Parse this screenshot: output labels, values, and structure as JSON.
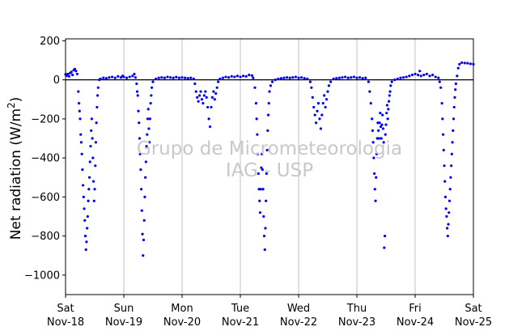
{
  "chart_data": {
    "type": "scatter",
    "ylabel_main": "Net radiation (W/m",
    "ylabel_sup": "2",
    "ylabel_close": ")",
    "ylim": [
      -1100,
      210
    ],
    "yticks": [
      200,
      0,
      -200,
      -400,
      -600,
      -800,
      -1000
    ],
    "ytick_labels": [
      "200",
      "0",
      "−200",
      "−400",
      "−600",
      "−800",
      "−1000"
    ],
    "xlim": [
      0,
      7
    ],
    "xticks": [
      {
        "day": 0,
        "line1": "Sat",
        "line2": "Nov-18"
      },
      {
        "day": 1,
        "line1": "Sun",
        "line2": "Nov-19"
      },
      {
        "day": 2,
        "line1": "Mon",
        "line2": "Nov-20"
      },
      {
        "day": 3,
        "line1": "Tue",
        "line2": "Nov-21"
      },
      {
        "day": 4,
        "line1": "Wed",
        "line2": "Nov-22"
      },
      {
        "day": 5,
        "line1": "Thu",
        "line2": "Nov-23"
      },
      {
        "day": 6,
        "line1": "Fri",
        "line2": "Nov-24"
      },
      {
        "day": 7,
        "line1": "Sat",
        "line2": "Nov-25"
      }
    ],
    "grid": "vertical",
    "zero_line": true,
    "marker_color": "#0000ff",
    "watermark_line1": "Grupo de Micrometeorologia",
    "watermark_line2": "IAG - USP",
    "series": [
      {
        "values": [
          [
            0.0,
            28
          ],
          [
            0.02,
            22
          ],
          [
            0.04,
            30
          ],
          [
            0.06,
            18
          ],
          [
            0.08,
            35
          ],
          [
            0.1,
            40
          ],
          [
            0.12,
            25
          ],
          [
            0.14,
            50
          ],
          [
            0.16,
            55
          ],
          [
            0.18,
            45
          ],
          [
            0.2,
            30
          ],
          [
            0.22,
            -60
          ],
          [
            0.23,
            -120
          ],
          [
            0.24,
            -160
          ],
          [
            0.25,
            -200
          ],
          [
            0.26,
            -280
          ],
          [
            0.27,
            -320
          ],
          [
            0.28,
            -380
          ],
          [
            0.29,
            -460
          ],
          [
            0.3,
            -540
          ],
          [
            0.31,
            -600
          ],
          [
            0.32,
            -660
          ],
          [
            0.33,
            -720
          ],
          [
            0.34,
            -800
          ],
          [
            0.35,
            -870
          ],
          [
            0.36,
            -830
          ],
          [
            0.37,
            -760
          ],
          [
            0.38,
            -700
          ],
          [
            0.39,
            -620
          ],
          [
            0.4,
            -560
          ],
          [
            0.41,
            -500
          ],
          [
            0.42,
            -420
          ],
          [
            0.43,
            -340
          ],
          [
            0.44,
            -260
          ],
          [
            0.45,
            -200
          ],
          [
            0.46,
            -300
          ],
          [
            0.47,
            -400
          ],
          [
            0.48,
            -520
          ],
          [
            0.49,
            -620
          ],
          [
            0.5,
            -560
          ],
          [
            0.51,
            -440
          ],
          [
            0.52,
            -320
          ],
          [
            0.53,
            -220
          ],
          [
            0.54,
            -140
          ],
          [
            0.55,
            -80
          ],
          [
            0.56,
            -40
          ],
          [
            0.58,
            0
          ],
          [
            0.6,
            5
          ],
          [
            0.65,
            10
          ],
          [
            0.7,
            8
          ],
          [
            0.75,
            12
          ],
          [
            0.8,
            15
          ],
          [
            0.85,
            10
          ],
          [
            0.9,
            18
          ],
          [
            0.95,
            12
          ],
          [
            0.98,
            20
          ],
          [
            1.0,
            15
          ],
          [
            1.05,
            10
          ],
          [
            1.1,
            15
          ],
          [
            1.15,
            20
          ],
          [
            1.18,
            30
          ],
          [
            1.2,
            12
          ],
          [
            1.22,
            -20
          ],
          [
            1.23,
            -60
          ],
          [
            1.24,
            -80
          ],
          [
            1.25,
            -160
          ],
          [
            1.26,
            -220
          ],
          [
            1.27,
            -300
          ],
          [
            1.28,
            -380
          ],
          [
            1.29,
            -460
          ],
          [
            1.3,
            -560
          ],
          [
            1.31,
            -670
          ],
          [
            1.32,
            -790
          ],
          [
            1.33,
            -900
          ],
          [
            1.34,
            -820
          ],
          [
            1.35,
            -720
          ],
          [
            1.36,
            -600
          ],
          [
            1.37,
            -500
          ],
          [
            1.38,
            -420
          ],
          [
            1.39,
            -340
          ],
          [
            1.4,
            -280
          ],
          [
            1.41,
            -200
          ],
          [
            1.42,
            -150
          ],
          [
            1.43,
            -250
          ],
          [
            1.44,
            -320
          ],
          [
            1.45,
            -200
          ],
          [
            1.46,
            -120
          ],
          [
            1.47,
            -80
          ],
          [
            1.48,
            -40
          ],
          [
            1.5,
            -10
          ],
          [
            1.55,
            5
          ],
          [
            1.6,
            10
          ],
          [
            1.65,
            12
          ],
          [
            1.7,
            10
          ],
          [
            1.75,
            15
          ],
          [
            1.8,
            12
          ],
          [
            1.85,
            10
          ],
          [
            1.9,
            14
          ],
          [
            1.95,
            10
          ],
          [
            2.0,
            12
          ],
          [
            2.05,
            10
          ],
          [
            2.1,
            8
          ],
          [
            2.15,
            10
          ],
          [
            2.2,
            5
          ],
          [
            2.22,
            -20
          ],
          [
            2.24,
            -60
          ],
          [
            2.26,
            -90
          ],
          [
            2.28,
            -110
          ],
          [
            2.3,
            -80
          ],
          [
            2.32,
            -60
          ],
          [
            2.34,
            -100
          ],
          [
            2.36,
            -120
          ],
          [
            2.38,
            -80
          ],
          [
            2.4,
            -60
          ],
          [
            2.42,
            -90
          ],
          [
            2.44,
            -140
          ],
          [
            2.46,
            -200
          ],
          [
            2.48,
            -240
          ],
          [
            2.5,
            -140
          ],
          [
            2.52,
            -90
          ],
          [
            2.54,
            -60
          ],
          [
            2.56,
            -100
          ],
          [
            2.58,
            -70
          ],
          [
            2.6,
            -40
          ],
          [
            2.62,
            -10
          ],
          [
            2.65,
            5
          ],
          [
            2.7,
            10
          ],
          [
            2.75,
            15
          ],
          [
            2.8,
            12
          ],
          [
            2.85,
            18
          ],
          [
            2.9,
            15
          ],
          [
            2.95,
            20
          ],
          [
            3.0,
            15
          ],
          [
            3.05,
            20
          ],
          [
            3.1,
            18
          ],
          [
            3.15,
            25
          ],
          [
            3.2,
            22
          ],
          [
            3.22,
            10
          ],
          [
            3.25,
            -40
          ],
          [
            3.27,
            -120
          ],
          [
            3.28,
            -200
          ],
          [
            3.29,
            -280
          ],
          [
            3.3,
            -380
          ],
          [
            3.31,
            -480
          ],
          [
            3.32,
            -560
          ],
          [
            3.33,
            -620
          ],
          [
            3.34,
            -680
          ],
          [
            3.35,
            -560
          ],
          [
            3.36,
            -450
          ],
          [
            3.37,
            -380
          ],
          [
            3.38,
            -460
          ],
          [
            3.39,
            -560
          ],
          [
            3.4,
            -700
          ],
          [
            3.41,
            -800
          ],
          [
            3.42,
            -870
          ],
          [
            3.43,
            -760
          ],
          [
            3.44,
            -620
          ],
          [
            3.45,
            -480
          ],
          [
            3.46,
            -360
          ],
          [
            3.47,
            -260
          ],
          [
            3.48,
            -180
          ],
          [
            3.49,
            -120
          ],
          [
            3.5,
            -60
          ],
          [
            3.52,
            -30
          ],
          [
            3.55,
            -10
          ],
          [
            3.6,
            0
          ],
          [
            3.65,
            5
          ],
          [
            3.7,
            8
          ],
          [
            3.75,
            10
          ],
          [
            3.8,
            12
          ],
          [
            3.85,
            10
          ],
          [
            3.9,
            12
          ],
          [
            3.95,
            15
          ],
          [
            4.0,
            10
          ],
          [
            4.05,
            12
          ],
          [
            4.1,
            8
          ],
          [
            4.15,
            5
          ],
          [
            4.2,
            -10
          ],
          [
            4.22,
            -40
          ],
          [
            4.24,
            -90
          ],
          [
            4.26,
            -140
          ],
          [
            4.28,
            -180
          ],
          [
            4.3,
            -220
          ],
          [
            4.32,
            -160
          ],
          [
            4.34,
            -120
          ],
          [
            4.36,
            -200
          ],
          [
            4.38,
            -250
          ],
          [
            4.4,
            -180
          ],
          [
            4.42,
            -120
          ],
          [
            4.44,
            -80
          ],
          [
            4.46,
            -140
          ],
          [
            4.48,
            -100
          ],
          [
            4.5,
            -60
          ],
          [
            4.52,
            -30
          ],
          [
            4.55,
            -10
          ],
          [
            4.6,
            5
          ],
          [
            4.65,
            8
          ],
          [
            4.7,
            10
          ],
          [
            4.75,
            12
          ],
          [
            4.8,
            15
          ],
          [
            4.85,
            10
          ],
          [
            4.9,
            12
          ],
          [
            4.95,
            15
          ],
          [
            5.0,
            10
          ],
          [
            5.05,
            12
          ],
          [
            5.1,
            8
          ],
          [
            5.15,
            10
          ],
          [
            5.2,
            -10
          ],
          [
            5.22,
            -60
          ],
          [
            5.24,
            -120
          ],
          [
            5.26,
            -200
          ],
          [
            5.27,
            -260
          ],
          [
            5.28,
            -320
          ],
          [
            5.29,
            -400
          ],
          [
            5.3,
            -480
          ],
          [
            5.31,
            -560
          ],
          [
            5.32,
            -620
          ],
          [
            5.33,
            -500
          ],
          [
            5.34,
            -380
          ],
          [
            5.35,
            -300
          ],
          [
            5.36,
            -220
          ],
          [
            5.37,
            -260
          ],
          [
            5.38,
            -300
          ],
          [
            5.39,
            -220
          ],
          [
            5.4,
            -170
          ],
          [
            5.41,
            -240
          ],
          [
            5.42,
            -300
          ],
          [
            5.43,
            -230
          ],
          [
            5.44,
            -180
          ],
          [
            5.45,
            -250
          ],
          [
            5.46,
            -320
          ],
          [
            5.47,
            -860
          ],
          [
            5.48,
            -800
          ],
          [
            5.49,
            -280
          ],
          [
            5.5,
            -230
          ],
          [
            5.51,
            -170
          ],
          [
            5.52,
            -130
          ],
          [
            5.53,
            -200
          ],
          [
            5.54,
            -150
          ],
          [
            5.55,
            -110
          ],
          [
            5.56,
            -80
          ],
          [
            5.57,
            -60
          ],
          [
            5.58,
            -30
          ],
          [
            5.6,
            -10
          ],
          [
            5.65,
            0
          ],
          [
            5.7,
            5
          ],
          [
            5.75,
            10
          ],
          [
            5.8,
            12
          ],
          [
            5.85,
            15
          ],
          [
            5.9,
            20
          ],
          [
            5.95,
            25
          ],
          [
            6.0,
            30
          ],
          [
            6.05,
            25
          ],
          [
            6.08,
            45
          ],
          [
            6.1,
            20
          ],
          [
            6.15,
            25
          ],
          [
            6.2,
            30
          ],
          [
            6.25,
            20
          ],
          [
            6.3,
            25
          ],
          [
            6.35,
            15
          ],
          [
            6.4,
            10
          ],
          [
            6.42,
            -10
          ],
          [
            6.44,
            -40
          ],
          [
            6.46,
            -120
          ],
          [
            6.47,
            -200
          ],
          [
            6.48,
            -280
          ],
          [
            6.49,
            -360
          ],
          [
            6.5,
            -440
          ],
          [
            6.51,
            -520
          ],
          [
            6.52,
            -600
          ],
          [
            6.53,
            -660
          ],
          [
            6.54,
            -700
          ],
          [
            6.55,
            -760
          ],
          [
            6.56,
            -800
          ],
          [
            6.57,
            -740
          ],
          [
            6.58,
            -680
          ],
          [
            6.59,
            -620
          ],
          [
            6.6,
            -560
          ],
          [
            6.61,
            -500
          ],
          [
            6.62,
            -440
          ],
          [
            6.63,
            -380
          ],
          [
            6.64,
            -320
          ],
          [
            6.65,
            -260
          ],
          [
            6.66,
            -200
          ],
          [
            6.67,
            -140
          ],
          [
            6.68,
            -90
          ],
          [
            6.69,
            -50
          ],
          [
            6.7,
            -20
          ],
          [
            6.72,
            20
          ],
          [
            6.74,
            60
          ],
          [
            6.76,
            80
          ],
          [
            6.8,
            88
          ],
          [
            6.85,
            86
          ],
          [
            6.9,
            85
          ],
          [
            6.95,
            82
          ],
          [
            7.0,
            80
          ]
        ]
      }
    ]
  }
}
